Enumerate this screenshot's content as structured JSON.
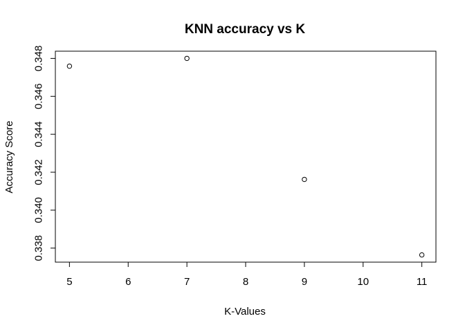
{
  "chart_data": {
    "type": "scatter",
    "title": "KNN accuracy vs K",
    "xlabel": "K-Values",
    "ylabel": "Accuracy Score",
    "x": [
      5,
      7,
      9,
      11
    ],
    "y": [
      0.34759,
      0.348,
      0.34162,
      0.33764
    ],
    "xlim": [
      4.76,
      11.24
    ],
    "ylim": [
      0.33726,
      0.34838
    ],
    "xticks": [
      5,
      6,
      7,
      8,
      9,
      10,
      11
    ],
    "xtick_labels": [
      "5",
      "6",
      "7",
      "8",
      "9",
      "10",
      "11"
    ],
    "yticks": [
      0.338,
      0.34,
      0.342,
      0.344,
      0.346,
      0.348
    ],
    "ytick_labels": [
      "0.338",
      "0.340",
      "0.342",
      "0.344",
      "0.346",
      "0.348"
    ],
    "marker": "open-circle",
    "grid": false,
    "legend": "none",
    "colors": {
      "points": "#000000",
      "axes": "#000000",
      "background": "#ffffff"
    }
  }
}
